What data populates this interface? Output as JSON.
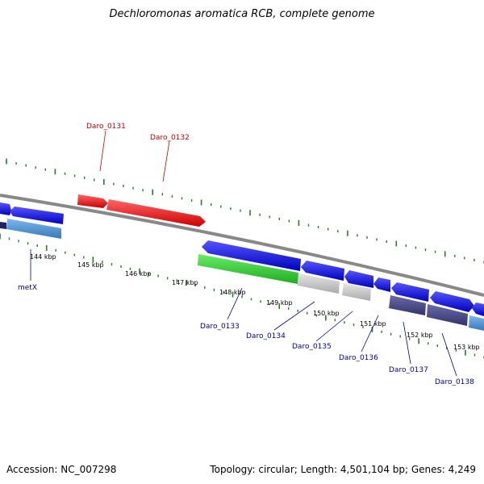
{
  "title": "Dechloromonas aromatica RCB, complete genome",
  "footer": {
    "accession": "Accession: NC_007298",
    "topology": "Topology: circular; Length: 4,501,104 bp; Genes: 4,249"
  },
  "colors": {
    "reverse_cds": "#ee1111",
    "forward_cds": "#1010dd",
    "forward_cds_alt": "#2a8ee0",
    "rna": "#33cc33",
    "other": "#c8c8c8",
    "dark_other": "#4a4a88",
    "backbone": "#888888",
    "tick": "#2a7a2a",
    "label_top": "#cc0000",
    "label_bottom": "#000099"
  },
  "scale_labels": [
    "144 kbp",
    "145 kbp",
    "146 kbp",
    "147 kbp",
    "148 kbp",
    "149 kbp",
    "150 kbp",
    "151 kbp",
    "152 kbp",
    "153 kbp"
  ],
  "gene_labels_top": [
    "Daro_0131",
    "Daro_0132"
  ],
  "gene_labels_bottom": [
    "metX",
    "Daro_0133",
    "Daro_0134",
    "Daro_0135",
    "Daro_0136",
    "Daro_0137",
    "Daro_0138"
  ]
}
